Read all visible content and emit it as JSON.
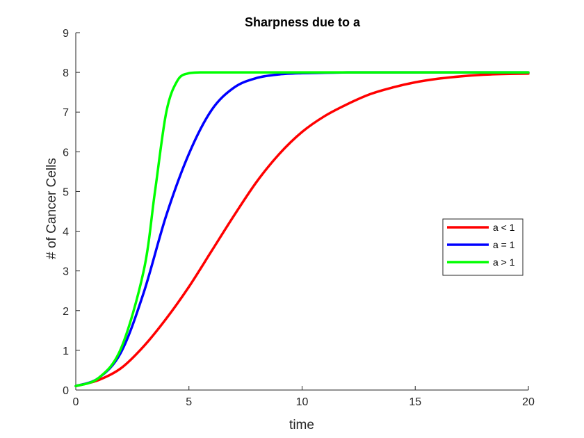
{
  "chart_data": {
    "type": "line",
    "title": "Sharpness due to a",
    "xlabel": "time",
    "ylabel": "# of Cancer Cells",
    "xlim": [
      0,
      20
    ],
    "ylim": [
      0,
      9
    ],
    "xticks": [
      "0",
      "5",
      "10",
      "15",
      "20"
    ],
    "yticks": [
      "0",
      "1",
      "2",
      "3",
      "4",
      "5",
      "6",
      "7",
      "8",
      "9"
    ],
    "grid": false,
    "legend_position": "right",
    "series": [
      {
        "name": "a < 1",
        "color": "#ff0000",
        "x": [
          0,
          1,
          2,
          3,
          4,
          5,
          6,
          7,
          8,
          9,
          10,
          11,
          12,
          13,
          14,
          15,
          16,
          17,
          18,
          19,
          20
        ],
        "y": [
          0.1,
          0.25,
          0.55,
          1.1,
          1.8,
          2.6,
          3.5,
          4.4,
          5.25,
          5.95,
          6.5,
          6.9,
          7.2,
          7.45,
          7.62,
          7.75,
          7.84,
          7.9,
          7.94,
          7.96,
          7.97
        ]
      },
      {
        "name": "a = 1",
        "color": "#0000ff",
        "x": [
          0,
          1,
          2,
          3,
          4,
          5,
          6,
          7,
          8,
          9,
          10,
          11,
          12,
          13,
          14,
          15,
          16,
          17,
          18,
          19,
          20
        ],
        "y": [
          0.1,
          0.3,
          0.95,
          2.45,
          4.4,
          5.95,
          7.05,
          7.62,
          7.86,
          7.95,
          7.98,
          7.99,
          8.0,
          8.0,
          8.0,
          8.0,
          8.0,
          8.0,
          8.0,
          8.0,
          8.0
        ]
      },
      {
        "name": "a > 1",
        "color": "#00ff00",
        "x": [
          0,
          1,
          2,
          3,
          3.5,
          4,
          4.5,
          5,
          5.5,
          6,
          7,
          8,
          9,
          10,
          11,
          12,
          13,
          14,
          15,
          16,
          17,
          18,
          19,
          20
        ],
        "y": [
          0.1,
          0.3,
          1.05,
          3.0,
          5.0,
          7.0,
          7.8,
          7.98,
          8.0,
          8.0,
          8.0,
          8.0,
          8.0,
          8.0,
          8.0,
          8.0,
          8.0,
          8.0,
          8.0,
          8.0,
          8.0,
          8.0,
          8.0,
          8.0
        ]
      }
    ]
  }
}
